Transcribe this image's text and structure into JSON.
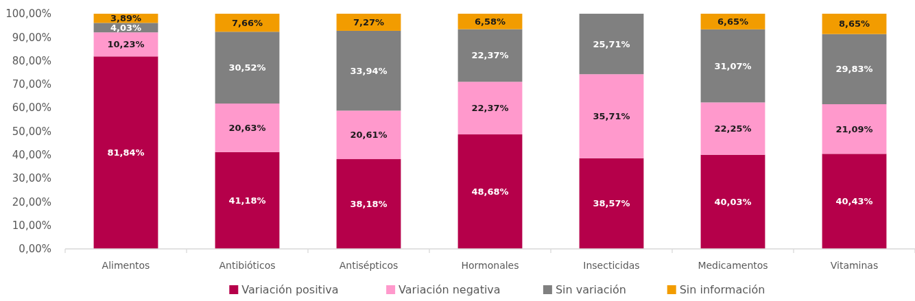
{
  "chart_data": {
    "type": "bar",
    "stacked": true,
    "legend": "bottom",
    "grid": false,
    "categories": [
      "Alimentos",
      "Antibióticos",
      "Antisépticos",
      "Hormonales",
      "Insecticidas",
      "Medicamentos",
      "Vitaminas"
    ],
    "ylim": [
      0,
      100
    ],
    "yticks": [
      {
        "value": 0,
        "label": "0,00%"
      },
      {
        "value": 10,
        "label": "10,00%"
      },
      {
        "value": 20,
        "label": "20,00%"
      },
      {
        "value": 30,
        "label": "30,00%"
      },
      {
        "value": 40,
        "label": "40,00%"
      },
      {
        "value": 50,
        "label": "50,00%"
      },
      {
        "value": 60,
        "label": "60,00%"
      },
      {
        "value": 70,
        "label": "70,00%"
      },
      {
        "value": 80,
        "label": "80,00%"
      },
      {
        "value": 90,
        "label": "90,00%"
      },
      {
        "value": 100,
        "label": "100,00%"
      }
    ],
    "series": [
      {
        "name": "Variación positiva",
        "color": "#b5004a",
        "values": [
          81.84,
          41.18,
          38.18,
          48.68,
          38.57,
          40.03,
          40.43
        ],
        "value_labels": [
          "81,84%",
          "41,18%",
          "38,18%",
          "48,68%",
          "38,57%",
          "40,03%",
          "40,43%"
        ]
      },
      {
        "name": "Variación negativa",
        "color": "#ff99cc",
        "values": [
          10.23,
          20.63,
          20.61,
          22.37,
          35.71,
          22.25,
          21.09
        ],
        "value_labels": [
          "10,23%",
          "20,63%",
          "20,61%",
          "22,37%",
          "35,71%",
          "22,25%",
          "21,09%"
        ]
      },
      {
        "name": "Sin variación",
        "color": "#808080",
        "values": [
          4.03,
          30.52,
          33.94,
          22.37,
          25.71,
          31.07,
          29.83
        ],
        "value_labels": [
          "4,03%",
          "30,52%",
          "33,94%",
          "22,37%",
          "25,71%",
          "31,07%",
          "29,83%"
        ]
      },
      {
        "name": "Sin información",
        "color": "#f29c00",
        "values": [
          3.89,
          7.66,
          7.27,
          6.58,
          null,
          6.65,
          8.65
        ],
        "value_labels": [
          "3,89%",
          "7,66%",
          "7,27%",
          "6,58%",
          null,
          "6,65%",
          "8,65%"
        ]
      }
    ]
  }
}
